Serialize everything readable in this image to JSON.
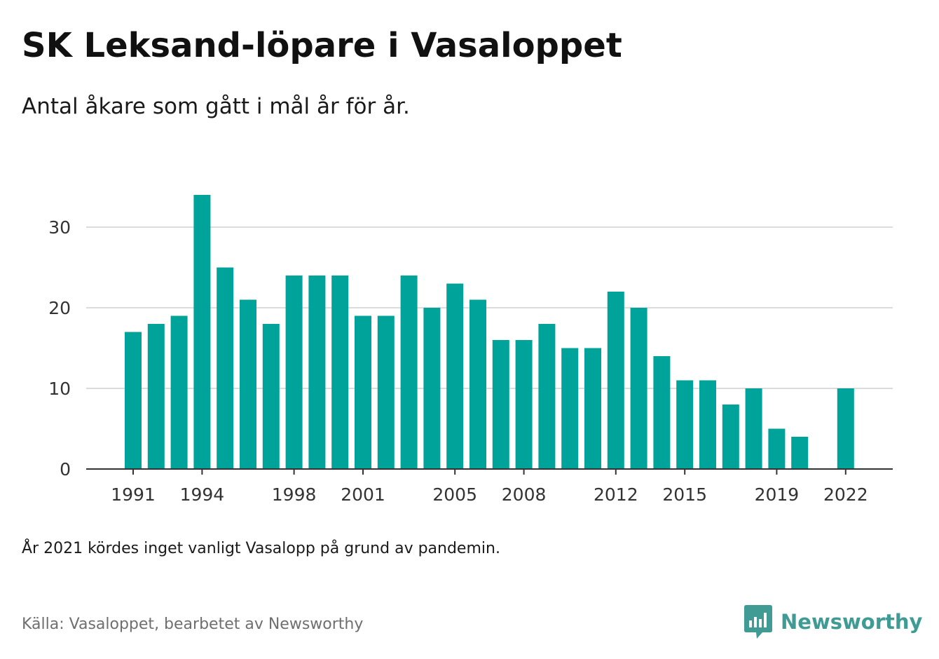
{
  "title": "SK Leksand-löpare i Vasaloppet",
  "subtitle": "Antal åkare som gått i mål år för år.",
  "note": "År 2021 kördes inget vanligt Vasalopp på grund av pandemin.",
  "source": "Källa: Vasaloppet, bearbetet av Newsworthy",
  "brand": {
    "name": "Newsworthy",
    "icon": "newsworthy-logo-icon",
    "color": "#3f9b94"
  },
  "chart_data": {
    "type": "bar",
    "title": "SK Leksand-löpare i Vasaloppet",
    "subtitle": "Antal åkare som gått i mål år för år.",
    "xlabel": "",
    "ylabel": "",
    "categories": [
      1991,
      1992,
      1993,
      1994,
      1995,
      1996,
      1997,
      1998,
      1999,
      2000,
      2001,
      2002,
      2003,
      2004,
      2005,
      2006,
      2007,
      2008,
      2009,
      2010,
      2011,
      2012,
      2013,
      2014,
      2015,
      2016,
      2017,
      2018,
      2019,
      2020,
      2021,
      2022
    ],
    "values": [
      17,
      18,
      19,
      34,
      25,
      21,
      18,
      24,
      24,
      24,
      19,
      19,
      24,
      20,
      23,
      21,
      16,
      16,
      18,
      15,
      15,
      22,
      20,
      14,
      11,
      11,
      8,
      10,
      5,
      4,
      null,
      10
    ],
    "xticks": [
      "1991",
      "1994",
      "1998",
      "2001",
      "2005",
      "2008",
      "2012",
      "2015",
      "2019",
      "2022"
    ],
    "yticks": [
      "0",
      "10",
      "20",
      "30"
    ],
    "ylim": [
      0,
      35
    ],
    "grid": true,
    "legend": "none",
    "bar_color": "#00a39a"
  }
}
